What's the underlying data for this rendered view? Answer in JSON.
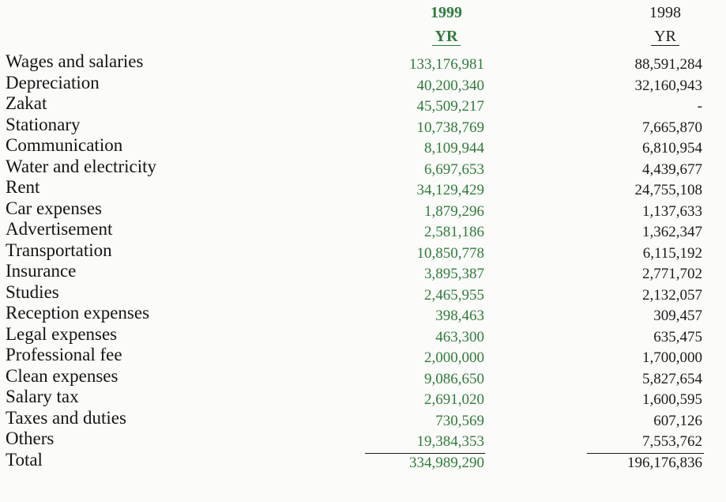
{
  "headers": {
    "y1999": {
      "year": "1999",
      "unit": "YR"
    },
    "y1998": {
      "year": "1998",
      "unit": "YR"
    }
  },
  "colors": {
    "current_year": "#2e7d3a",
    "prior_year": "#1c1c1c"
  },
  "rows": [
    {
      "label": "Wages and salaries",
      "v1999": "133,176,981",
      "v1998": "88,591,284"
    },
    {
      "label": "Depreciation",
      "v1999": "40,200,340",
      "v1998": "32,160,943"
    },
    {
      "label": "Zakat",
      "v1999": "45,509,217",
      "v1998": "-"
    },
    {
      "label": "Stationary",
      "v1999": "10,738,769",
      "v1998": "7,665,870"
    },
    {
      "label": "Communication",
      "v1999": "8,109,944",
      "v1998": "6,810,954"
    },
    {
      "label": "Water and electricity",
      "v1999": "6,697,653",
      "v1998": "4,439,677"
    },
    {
      "label": "Rent",
      "v1999": "34,129,429",
      "v1998": "24,755,108"
    },
    {
      "label": "Car expenses",
      "v1999": "1,879,296",
      "v1998": "1,137,633"
    },
    {
      "label": "Advertisement",
      "v1999": "2,581,186",
      "v1998": "1,362,347"
    },
    {
      "label": "Transportation",
      "v1999": "10,850,778",
      "v1998": "6,115,192"
    },
    {
      "label": "Insurance",
      "v1999": "3,895,387",
      "v1998": "2,771,702"
    },
    {
      "label": "Studies",
      "v1999": "2,465,955",
      "v1998": "2,132,057"
    },
    {
      "label": "Reception expenses",
      "v1999": "398,463",
      "v1998": "309,457"
    },
    {
      "label": "Legal expenses",
      "v1999": "463,300",
      "v1998": "635,475"
    },
    {
      "label": "Professional fee",
      "v1999": "2,000,000",
      "v1998": "1,700,000"
    },
    {
      "label": "Clean expenses",
      "v1999": "9,086,650",
      "v1998": "5,827,654"
    },
    {
      "label": "Salary tax",
      "v1999": "2,691,020",
      "v1998": "1,600,595"
    },
    {
      "label": "Taxes and duties",
      "v1999": "730,569",
      "v1998": "607,126"
    },
    {
      "label": "Others",
      "v1999": "19,384,353",
      "v1998": "7,553,762"
    },
    {
      "label": "Total",
      "v1999": "334,989,290",
      "v1998": "196,176,836"
    }
  ]
}
